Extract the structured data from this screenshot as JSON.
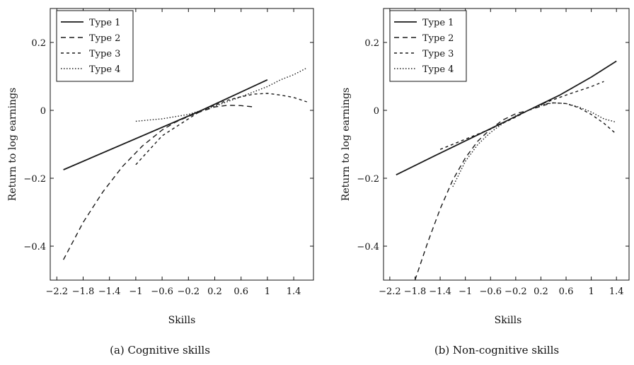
{
  "chart_data": [
    {
      "type": "line",
      "caption": "(a) Cognitive skills",
      "xlabel": "Skills",
      "ylabel": "Return to log earnings",
      "xlim": [
        -2.3,
        1.7
      ],
      "ylim": [
        -0.5,
        0.3
      ],
      "xticks": [
        -2.2,
        -1.8,
        -1.4,
        -1,
        -0.6,
        -0.2,
        0.2,
        0.6,
        1,
        1.4
      ],
      "xtick_labels": [
        "−2.2",
        "−1.8",
        "−1.4",
        "−1",
        "−0.6",
        "−0.2",
        "0.2",
        "0.6",
        "1",
        "1.4"
      ],
      "yticks": [
        0.2,
        0,
        -0.2,
        -0.4
      ],
      "ytick_labels": [
        "0.2",
        "0",
        "−0.2",
        "−0.4"
      ],
      "legend_position": "top-left",
      "series": [
        {
          "name": "Type 1",
          "style": "solid",
          "x": [
            -2.1,
            0,
            1.0
          ],
          "y": [
            -0.175,
            0.0,
            0.09
          ]
        },
        {
          "name": "Type 2",
          "style": "dashed-long",
          "x": [
            -2.1,
            -1.8,
            -1.5,
            -1.2,
            -0.9,
            -0.6,
            -0.4,
            -0.2,
            0,
            0.2,
            0.4,
            0.6,
            0.8
          ],
          "y": [
            -0.44,
            -0.33,
            -0.24,
            -0.165,
            -0.105,
            -0.058,
            -0.035,
            -0.018,
            -0.003,
            0.01,
            0.015,
            0.014,
            0.01
          ]
        },
        {
          "name": "Type 3",
          "style": "dashed-short",
          "x": [
            -1.0,
            -0.6,
            -0.2,
            0,
            0.2,
            0.4,
            0.6,
            0.8,
            1.0,
            1.2,
            1.4,
            1.6
          ],
          "y": [
            -0.16,
            -0.075,
            -0.025,
            0.0,
            0.015,
            0.03,
            0.04,
            0.048,
            0.05,
            0.045,
            0.038,
            0.025
          ]
        },
        {
          "name": "Type 4",
          "style": "dotted",
          "x": [
            -1.0,
            -0.6,
            -0.2,
            0,
            0.2,
            0.4,
            0.6,
            0.8,
            1.0,
            1.2,
            1.4,
            1.6
          ],
          "y": [
            -0.032,
            -0.025,
            -0.012,
            0.0,
            0.012,
            0.026,
            0.04,
            0.055,
            0.07,
            0.09,
            0.105,
            0.125
          ]
        }
      ]
    },
    {
      "type": "line",
      "caption": "(b) Non-cognitive skills",
      "xlabel": "Skills",
      "ylabel": "Return to log earnings",
      "xlim": [
        -2.3,
        1.6
      ],
      "ylim": [
        -0.5,
        0.3
      ],
      "xticks": [
        -2.2,
        -1.8,
        -1.4,
        -1,
        -0.6,
        -0.2,
        0.2,
        0.6,
        1,
        1.4
      ],
      "xtick_labels": [
        "−2.2",
        "−1.8",
        "−1.4",
        "−1",
        "−0.6",
        "−0.2",
        "0.2",
        "0.6",
        "1",
        "1.4"
      ],
      "yticks": [
        0.2,
        0,
        -0.2,
        -0.4
      ],
      "ytick_labels": [
        "0.2",
        "0",
        "−0.2",
        "−0.4"
      ],
      "legend_position": "top-left",
      "series": [
        {
          "name": "Type 1",
          "style": "solid",
          "x": [
            -2.1,
            -1.5,
            -1.0,
            -0.5,
            0,
            0.5,
            1.0,
            1.4
          ],
          "y": [
            -0.19,
            -0.135,
            -0.09,
            -0.045,
            0.0,
            0.045,
            0.098,
            0.145
          ]
        },
        {
          "name": "Type 2",
          "style": "dashed-long",
          "x": [
            -1.8,
            -1.6,
            -1.4,
            -1.2,
            -1.0,
            -0.8,
            -0.6,
            -0.4,
            -0.2,
            0,
            0.2,
            0.3
          ],
          "y": [
            -0.5,
            -0.39,
            -0.29,
            -0.205,
            -0.14,
            -0.09,
            -0.055,
            -0.028,
            -0.01,
            0.0,
            0.012,
            0.018
          ]
        },
        {
          "name": "Type 3",
          "style": "dashed-short",
          "x": [
            -1.4,
            -1.0,
            -0.6,
            -0.2,
            0,
            0.2,
            0.6,
            1.0,
            1.2
          ],
          "y": [
            -0.115,
            -0.085,
            -0.055,
            -0.02,
            0.0,
            0.018,
            0.045,
            0.07,
            0.085
          ]
        },
        {
          "name": "Type 4",
          "style": "dotted",
          "x": [
            -1.2,
            -1.0,
            -0.8,
            -0.6,
            -0.4,
            -0.2,
            0,
            0.2,
            0.4,
            0.6,
            0.8,
            1.0,
            1.2,
            1.4
          ],
          "y": [
            -0.225,
            -0.15,
            -0.1,
            -0.065,
            -0.038,
            -0.016,
            0.0,
            0.015,
            0.022,
            0.02,
            0.01,
            -0.005,
            -0.025,
            -0.035
          ]
        },
        {
          "name": "",
          "style": "dashed-short-branch",
          "x": [
            0.2,
            0.4,
            0.6,
            0.8,
            1.0,
            1.2,
            1.4
          ],
          "y": [
            0.018,
            0.022,
            0.02,
            0.008,
            -0.012,
            -0.038,
            -0.07
          ]
        }
      ]
    }
  ]
}
